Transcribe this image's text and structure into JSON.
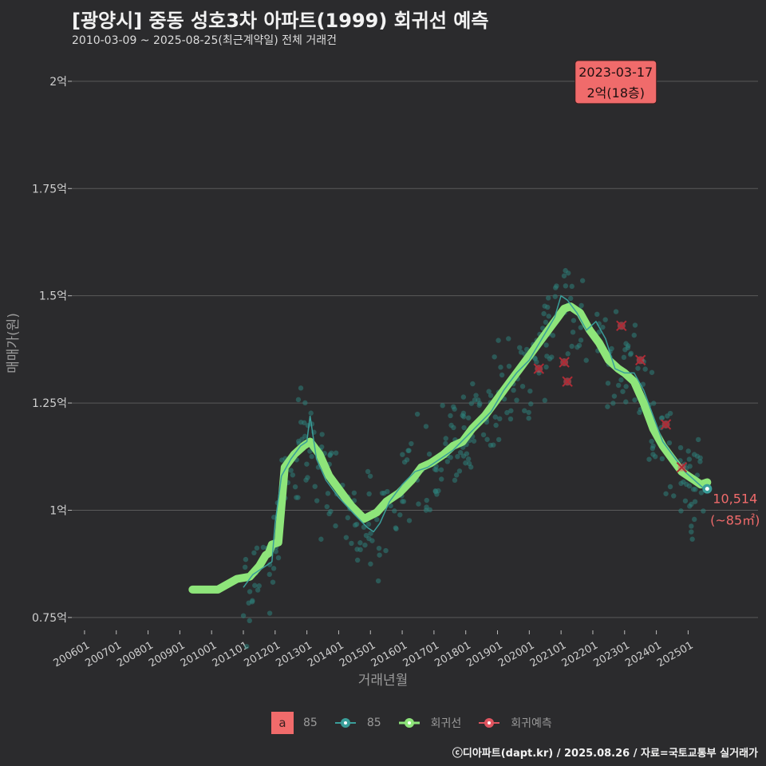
{
  "header": {
    "title": "[광양시] 중동 성호3차 아파트(1999) 회귀선 예측",
    "subtitle": "2010-03-09 ~ 2025-08-25(최근계약일) 전체 거래건"
  },
  "colors": {
    "background": "#2b2b2d",
    "grid": "#5a5a5a",
    "scatter": "#2e7f7a",
    "trade_line": "#3a9e9a",
    "regression": "#8ee57a",
    "forecast": "#e05560",
    "annotation_bg": "#f06b6b"
  },
  "chart_data": {
    "type": "line",
    "xlabel": "거래년월",
    "ylabel": "매매가(원)",
    "x_ticks": [
      "200601",
      "200701",
      "200801",
      "200901",
      "201001",
      "201101",
      "201201",
      "201301",
      "201401",
      "201501",
      "201601",
      "201701",
      "201801",
      "201901",
      "202001",
      "202101",
      "202201",
      "202301",
      "202401",
      "202501"
    ],
    "y_ticks": [
      {
        "value": 0.75,
        "label": "0.75억"
      },
      {
        "value": 1.0,
        "label": "1억"
      },
      {
        "value": 1.25,
        "label": "1.25억"
      },
      {
        "value": 1.5,
        "label": "1.5억"
      },
      {
        "value": 1.75,
        "label": "1.75억"
      },
      {
        "value": 2.0,
        "label": "2억"
      }
    ],
    "xlim": [
      2005.6,
      2027.2
    ],
    "ylim": [
      0.72,
      2.05
    ],
    "series": [
      {
        "name": "회귀선",
        "x": [
          2009.4,
          2010.2,
          2010.8,
          2011.2,
          2011.5,
          2011.7,
          2011.8,
          2011.9,
          2012.1,
          2012.3,
          2012.6,
          2012.9,
          2013.1,
          2013.4,
          2013.7,
          2014.0,
          2014.4,
          2014.8,
          2015.2,
          2015.5,
          2015.9,
          2016.3,
          2016.6,
          2016.9,
          2017.3,
          2017.6,
          2017.9,
          2018.2,
          2018.6,
          2019.0,
          2019.4,
          2019.8,
          2020.2,
          2020.6,
          2020.9,
          2021.1,
          2021.3,
          2021.6,
          2021.9,
          2022.2,
          2022.5,
          2022.8,
          2023.0,
          2023.3,
          2023.6,
          2023.9,
          2024.2,
          2024.5,
          2024.8,
          2025.0,
          2025.2,
          2025.4,
          2025.6
        ],
        "y": [
          0.815,
          0.815,
          0.84,
          0.845,
          0.87,
          0.895,
          0.9,
          0.92,
          0.925,
          1.1,
          1.13,
          1.15,
          1.16,
          1.13,
          1.08,
          1.05,
          1.01,
          0.98,
          0.995,
          1.02,
          1.04,
          1.07,
          1.1,
          1.11,
          1.13,
          1.15,
          1.16,
          1.19,
          1.22,
          1.26,
          1.3,
          1.34,
          1.38,
          1.42,
          1.45,
          1.47,
          1.475,
          1.46,
          1.42,
          1.39,
          1.35,
          1.33,
          1.32,
          1.3,
          1.25,
          1.19,
          1.15,
          1.12,
          1.09,
          1.08,
          1.07,
          1.06,
          1.065
        ]
      },
      {
        "name": "85",
        "x": [
          2011.0,
          2011.3,
          2011.5,
          2011.7,
          2011.9,
          2012.0,
          2012.2,
          2012.5,
          2012.8,
          2013.0,
          2013.1,
          2013.3,
          2013.6,
          2014.0,
          2014.5,
          2014.9,
          2015.1,
          2015.3,
          2015.6,
          2016.0,
          2016.4,
          2016.8,
          2017.2,
          2017.6,
          2018.0,
          2018.4,
          2018.8,
          2019.2,
          2019.6,
          2020.0,
          2020.4,
          2020.8,
          2021.0,
          2021.2,
          2021.5,
          2021.8,
          2022.1,
          2022.4,
          2022.7,
          2023.0,
          2023.3,
          2023.6,
          2023.9,
          2024.2,
          2024.6,
          2024.9,
          2025.2,
          2025.5
        ],
        "y": [
          0.82,
          0.85,
          0.86,
          0.87,
          0.88,
          0.97,
          1.08,
          1.12,
          1.15,
          1.16,
          1.22,
          1.12,
          1.07,
          1.03,
          0.99,
          0.96,
          0.95,
          0.97,
          1.02,
          1.06,
          1.09,
          1.1,
          1.12,
          1.14,
          1.17,
          1.2,
          1.23,
          1.28,
          1.32,
          1.35,
          1.4,
          1.45,
          1.5,
          1.49,
          1.46,
          1.42,
          1.44,
          1.4,
          1.33,
          1.32,
          1.32,
          1.28,
          1.22,
          1.16,
          1.12,
          1.09,
          1.07,
          1.05
        ]
      },
      {
        "name": "회귀예측",
        "x": [
          2020.3,
          2021.1,
          2021.2,
          2022.9,
          2023.5,
          2024.3,
          2024.8
        ],
        "y": [
          1.33,
          1.345,
          1.3,
          1.43,
          1.35,
          1.2,
          1.1
        ]
      }
    ],
    "point_annotation": {
      "line1": "2023-03-17",
      "line2": "2억(18층)",
      "x": 2023.2,
      "y": 2.0
    },
    "end_label": {
      "line1": "10,514",
      "line2": "(~85㎡)",
      "x": 2025.6,
      "y": 1.05
    },
    "scatter_count": 380
  },
  "legend": {
    "key_a_symbol": "a",
    "key_a_label": "85",
    "items": [
      {
        "label": "85",
        "color": "#3a9e9a"
      },
      {
        "label": "회귀선",
        "color": "#8ee57a"
      },
      {
        "label": "회귀예측",
        "color": "#e05560"
      }
    ]
  },
  "footer": "ⓒ디아파트(dapt.kr) / 2025.08.26 / 자료=국토교통부 실거래가"
}
